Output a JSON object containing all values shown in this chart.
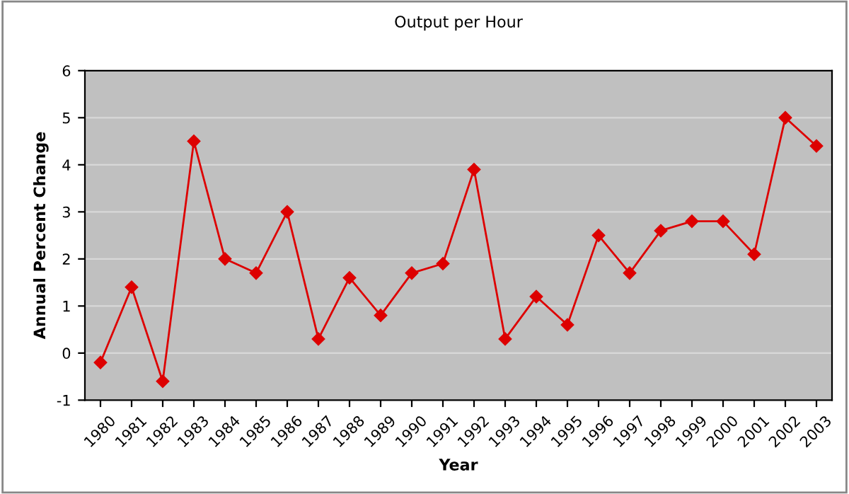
{
  "chart_data": {
    "type": "line",
    "title": "Output per Hour",
    "xlabel": "Year",
    "ylabel": "Annual Percent Change",
    "categories": [
      "1980",
      "1981",
      "1982",
      "1983",
      "1984",
      "1985",
      "1986",
      "1987",
      "1988",
      "1989",
      "1990",
      "1991",
      "1992",
      "1993",
      "1994",
      "1995",
      "1996",
      "1997",
      "1998",
      "1999",
      "2000",
      "2001",
      "2002",
      "2003"
    ],
    "series": [
      {
        "color": "#dd0000",
        "values": [
          -0.2,
          1.4,
          -0.6,
          4.5,
          2.0,
          1.7,
          3.0,
          0.3,
          1.6,
          0.8,
          1.7,
          1.9,
          3.9,
          0.3,
          1.2,
          0.6,
          2.5,
          1.7,
          2.6,
          2.8,
          2.8,
          2.1,
          5.0,
          4.4
        ]
      }
    ],
    "ylim": [
      -1,
      6
    ],
    "yticks": [
      -1,
      0,
      1,
      2,
      3,
      4,
      5,
      6
    ],
    "grid": "y",
    "marker": "diamond",
    "line_style": "solid",
    "legend": false
  }
}
